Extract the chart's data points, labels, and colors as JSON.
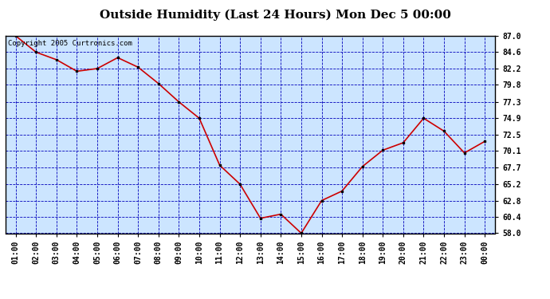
{
  "title": "Outside Humidity (Last 24 Hours) Mon Dec 5 00:00",
  "copyright": "Copyright 2005 Curtronics.com",
  "x_labels": [
    "01:00",
    "02:00",
    "03:00",
    "04:00",
    "05:00",
    "06:00",
    "07:00",
    "08:00",
    "09:00",
    "10:00",
    "11:00",
    "12:00",
    "13:00",
    "14:00",
    "15:00",
    "16:00",
    "17:00",
    "18:00",
    "19:00",
    "20:00",
    "21:00",
    "22:00",
    "23:00",
    "00:00"
  ],
  "y_values": [
    87.0,
    84.6,
    83.5,
    81.8,
    82.2,
    83.8,
    82.4,
    80.0,
    77.3,
    74.9,
    68.0,
    65.2,
    60.2,
    60.8,
    58.0,
    62.8,
    64.2,
    67.8,
    70.2,
    71.3,
    74.9,
    73.0,
    69.8,
    71.5
  ],
  "ylim_min": 58.0,
  "ylim_max": 87.0,
  "yticks": [
    58.0,
    60.4,
    62.8,
    65.2,
    67.7,
    70.1,
    72.5,
    74.9,
    77.3,
    79.8,
    82.2,
    84.6,
    87.0
  ],
  "line_color": "#cc0000",
  "marker_color": "#000000",
  "bg_color": "#ffffff",
  "plot_bg_color": "#cce5ff",
  "grid_color": "#0000bb",
  "border_color": "#000000",
  "title_fontsize": 11,
  "tick_fontsize": 7,
  "copyright_fontsize": 6.5
}
